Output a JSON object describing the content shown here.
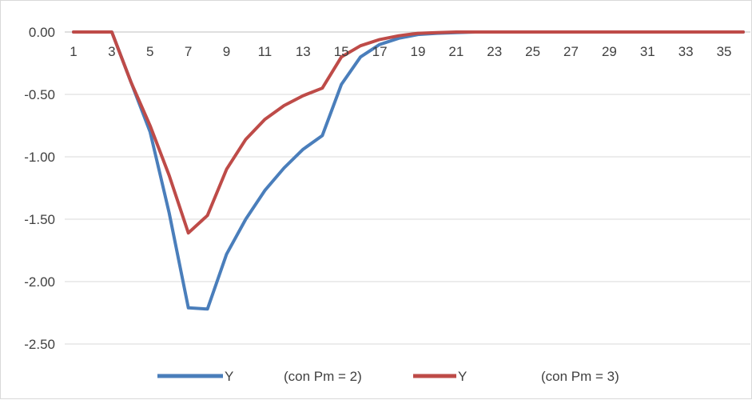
{
  "chart_data": {
    "type": "line",
    "title": "",
    "xlabel": "",
    "ylabel": "",
    "x": [
      1,
      2,
      3,
      4,
      5,
      6,
      7,
      8,
      9,
      10,
      11,
      12,
      13,
      14,
      15,
      16,
      17,
      18,
      19,
      20,
      21,
      22,
      23,
      24,
      25,
      26,
      27,
      28,
      29,
      30,
      31,
      32,
      33,
      34,
      35,
      36
    ],
    "x_tick_labels": [
      "1",
      "3",
      "5",
      "7",
      "9",
      "11",
      "13",
      "15",
      "17",
      "19",
      "21",
      "23",
      "25",
      "27",
      "29",
      "31",
      "33",
      "35"
    ],
    "y_tick_labels": [
      "0.00",
      "-0.50",
      "-1.00",
      "-1.50",
      "-2.00",
      "-2.50"
    ],
    "ylim": [
      -2.5,
      0
    ],
    "grid": "horizontal",
    "legend_position": "bottom",
    "series": [
      {
        "name": "Y",
        "legend_suffix": "(con Pm = 2)",
        "color": "#4a7ebb",
        "values": [
          0,
          0,
          0,
          -0.4,
          -0.8,
          -1.45,
          -2.21,
          -2.22,
          -1.78,
          -1.5,
          -1.27,
          -1.09,
          -0.94,
          -0.83,
          -0.42,
          -0.2,
          -0.1,
          -0.05,
          -0.02,
          -0.01,
          -0.005,
          0,
          0,
          0,
          0,
          0,
          0,
          0,
          0,
          0,
          0,
          0,
          0,
          0,
          0,
          0
        ]
      },
      {
        "name": "Y",
        "legend_suffix": "(con Pm = 3)",
        "color": "#be4b48",
        "values": [
          0,
          0,
          0,
          -0.4,
          -0.75,
          -1.15,
          -1.61,
          -1.47,
          -1.1,
          -0.86,
          -0.7,
          -0.59,
          -0.51,
          -0.45,
          -0.2,
          -0.11,
          -0.06,
          -0.03,
          -0.01,
          -0.005,
          0,
          0,
          0,
          0,
          0,
          0,
          0,
          0,
          0,
          0,
          0,
          0,
          0,
          0,
          0,
          0
        ]
      }
    ]
  }
}
